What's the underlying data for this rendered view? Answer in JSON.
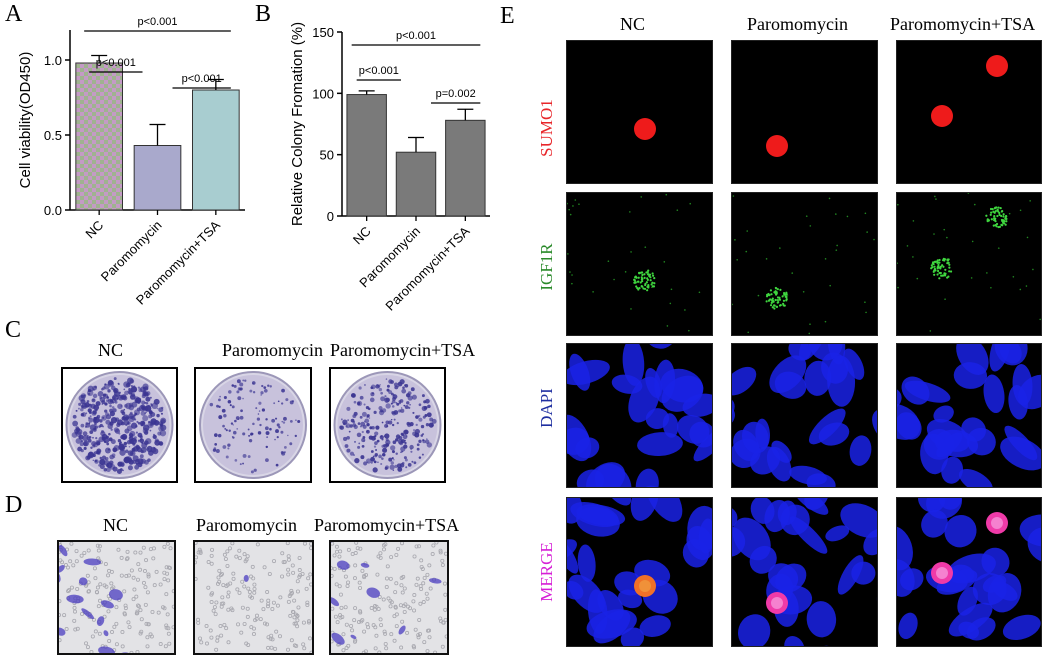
{
  "panels": {
    "A": "A",
    "B": "B",
    "C": "C",
    "D": "D",
    "E": "E"
  },
  "groups": [
    "NC",
    "Paromomycin",
    "Paromomycin+TSA"
  ],
  "chart_data": [
    {
      "type": "bar",
      "ylabel": "Cell viability(OD450)",
      "categories": [
        "NC",
        "Paromomycin",
        "Paromomycin+TSA"
      ],
      "values": [
        0.98,
        0.43,
        0.8
      ],
      "errors": [
        0.05,
        0.14,
        0.07
      ],
      "ylim": [
        0,
        1.2
      ],
      "yticks": [
        "0.0",
        "0.5",
        "1.0"
      ],
      "bar_colors": [
        "#b39bb8",
        "#a9a9cc",
        "#a8cdd0"
      ],
      "annotations": [
        {
          "pair": [
            0,
            2
          ],
          "text": "p<0.001"
        },
        {
          "pair": [
            0,
            1
          ],
          "text": "p<0.001"
        },
        {
          "pair": [
            1,
            2
          ],
          "text": "p<0.001"
        }
      ]
    },
    {
      "type": "bar",
      "ylabel": "Relative Colony Fromation (%)",
      "categories": [
        "NC",
        "Paromomycin",
        "Paromomycin+TSA"
      ],
      "values": [
        99,
        52,
        78
      ],
      "errors": [
        3,
        12,
        9
      ],
      "ylim": [
        0,
        150
      ],
      "yticks": [
        "0",
        "50",
        "100",
        "150"
      ],
      "bar_colors": [
        "#7a7a7a",
        "#7a7a7a",
        "#7a7a7a"
      ],
      "annotations": [
        {
          "pair": [
            0,
            2
          ],
          "text": "p<0.001"
        },
        {
          "pair": [
            0,
            1
          ],
          "text": "p<0.001"
        },
        {
          "pair": [
            1,
            2
          ],
          "text": "p=0.002"
        }
      ]
    }
  ],
  "panelC": {
    "labels": [
      "NC",
      "Paromomycin",
      "Paromomycin+TSA"
    ]
  },
  "panelD": {
    "labels": [
      "NC",
      "Paromomycin",
      "Paromomycin+TSA"
    ]
  },
  "panelE": {
    "columns": [
      "NC",
      "Paromomycin",
      "Paromomycin+TSA"
    ],
    "rows": [
      {
        "label": "SUMO1",
        "color": "#e8262a"
      },
      {
        "label": "IGF1R",
        "color": "#2a8a2a"
      },
      {
        "label": "DAPI",
        "color": "#1f2fa0"
      },
      {
        "label": "MERGE",
        "color": "#d61fd6"
      }
    ]
  }
}
